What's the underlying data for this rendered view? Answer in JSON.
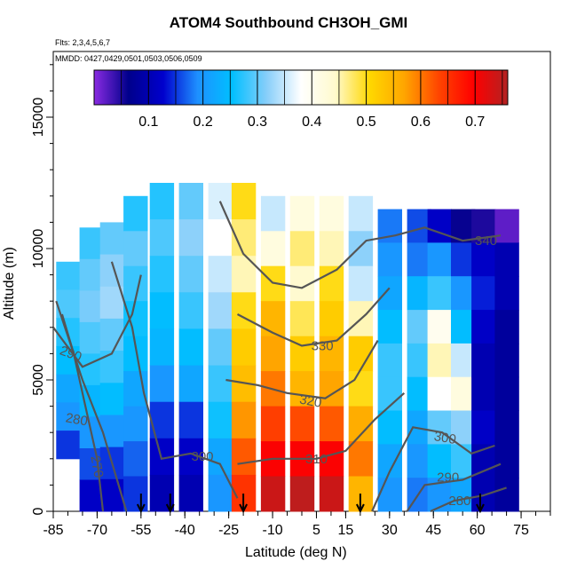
{
  "chart_data": {
    "type": "heatmap",
    "title": "ATOM4 Southbound CH3OH_GMI",
    "flights_label": "Flts: 2,3,4,5,6,7",
    "dates_label": "MMDD: 0427,0429,0501,0503,0506,0509",
    "xlabel": "Latitude (deg N)",
    "ylabel": "Altitude (m)",
    "xlim": [
      -85,
      85
    ],
    "ylim": [
      0,
      17500
    ],
    "x_ticks": [
      -85,
      -70,
      -55,
      -40,
      -25,
      -10,
      5,
      15,
      30,
      45,
      60,
      75
    ],
    "y_ticks": [
      0,
      5000,
      10000,
      15000
    ],
    "colorbar": {
      "range": [
        0,
        0.76
      ],
      "ticks": [
        0.1,
        0.2,
        0.3,
        0.4,
        0.5,
        0.6,
        0.7
      ],
      "colors": [
        "#8a2be2",
        "#00008b",
        "#0000cd",
        "#1e90ff",
        "#00bfff",
        "#87cefa",
        "#ffffff",
        "#fffacd",
        "#ffd700",
        "#ffa500",
        "#ff4500",
        "#ff0000",
        "#b22222"
      ]
    },
    "field_columns": [
      {
        "lat": -80,
        "top": 9500,
        "bottom": 2000,
        "values": [
          0.28,
          0.29,
          0.27,
          0.25,
          0.22,
          0.2,
          0.15
        ]
      },
      {
        "lat": -72,
        "top": 10800,
        "bottom": 0,
        "values": [
          0.28,
          0.3,
          0.31,
          0.29,
          0.27,
          0.24,
          0.2,
          0.16,
          0.12
        ]
      },
      {
        "lat": -65,
        "top": 11000,
        "bottom": 0,
        "values": [
          0.3,
          0.32,
          0.33,
          0.3,
          0.28,
          0.25,
          0.2,
          0.15,
          0.12
        ]
      },
      {
        "lat": -57,
        "top": 12000,
        "bottom": 0,
        "values": [
          0.27,
          0.3,
          0.28,
          0.26,
          0.25,
          0.22,
          0.2,
          0.17,
          0.15
        ]
      },
      {
        "lat": -48,
        "top": 12500,
        "bottom": 0,
        "values": [
          0.27,
          0.29,
          0.27,
          0.25,
          0.24,
          0.2,
          0.15,
          0.12,
          0.1
        ]
      },
      {
        "lat": -38,
        "top": 12500,
        "bottom": 0,
        "values": [
          0.3,
          0.32,
          0.3,
          0.28,
          0.25,
          0.22,
          0.15,
          0.12,
          0.1
        ]
      },
      {
        "lat": -28,
        "top": 12500,
        "bottom": 0,
        "values": [
          0.36,
          0.38,
          0.35,
          0.33,
          0.3,
          0.28,
          0.26,
          0.22,
          0.2
        ]
      },
      {
        "lat": -20,
        "top": 12500,
        "bottom": 0,
        "values": [
          0.5,
          0.47,
          0.45,
          0.5,
          0.52,
          0.54,
          0.58,
          0.62,
          0.65
        ]
      },
      {
        "lat": -10,
        "top": 12000,
        "bottom": 0,
        "values": [
          0.35,
          0.42,
          0.5,
          0.55,
          0.57,
          0.6,
          0.64,
          0.7,
          0.74
        ]
      },
      {
        "lat": 0,
        "top": 12000,
        "bottom": 0,
        "values": [
          0.42,
          0.47,
          0.44,
          0.48,
          0.52,
          0.55,
          0.63,
          0.7,
          0.75
        ]
      },
      {
        "lat": 10,
        "top": 12000,
        "bottom": 0,
        "values": [
          0.42,
          0.45,
          0.5,
          0.52,
          0.55,
          0.57,
          0.62,
          0.7,
          0.74
        ]
      },
      {
        "lat": 20,
        "top": 12000,
        "bottom": 0,
        "values": [
          0.35,
          0.32,
          0.35,
          0.45,
          0.52,
          0.5,
          0.56,
          0.6,
          0.55
        ]
      },
      {
        "lat": 30,
        "top": 11500,
        "bottom": 0,
        "values": [
          0.18,
          0.2,
          0.22,
          0.25,
          0.28,
          0.28,
          0.25,
          0.22,
          0.2
        ]
      },
      {
        "lat": 40,
        "top": 11500,
        "bottom": 0,
        "values": [
          0.16,
          0.18,
          0.24,
          0.3,
          0.28,
          0.25,
          0.22,
          0.2,
          0.18
        ]
      },
      {
        "lat": 47,
        "top": 11500,
        "bottom": 0,
        "values": [
          0.12,
          0.2,
          0.28,
          0.4,
          0.45,
          0.38,
          0.3,
          0.25,
          0.2
        ]
      },
      {
        "lat": 55,
        "top": 11500,
        "bottom": 0,
        "values": [
          0.06,
          0.15,
          0.2,
          0.25,
          0.35,
          0.42,
          0.32,
          0.28,
          0.22
        ]
      },
      {
        "lat": 62,
        "top": 11500,
        "bottom": 0,
        "values": [
          0.05,
          0.12,
          0.14,
          0.12,
          0.1,
          0.1,
          0.12,
          0.1,
          0.1
        ]
      },
      {
        "lat": 70,
        "top": 11500,
        "bottom": 0,
        "values": [
          0.02,
          0.1,
          0.1,
          0.08,
          0.08,
          0.08,
          0.08,
          0.08,
          0.08
        ]
      }
    ],
    "contours": [
      {
        "label": "270",
        "label_at": [
          -70,
          1700
        ],
        "label_angle": 80,
        "points": [
          [
            -82,
            7500
          ],
          [
            -78,
            6000
          ],
          [
            -74,
            4000
          ],
          [
            -70,
            2000
          ],
          [
            -68,
            0
          ]
        ]
      },
      {
        "label": "280",
        "label_at": [
          -77,
          3500
        ],
        "label_angle": 10,
        "points": [
          [
            -84,
            8000
          ],
          [
            -75,
            5000
          ],
          [
            -68,
            3000
          ],
          [
            -64,
            1500
          ],
          [
            -60,
            0
          ]
        ]
      },
      {
        "label": "290",
        "label_at": [
          -79,
          6000
        ],
        "label_angle": 20,
        "points": [
          [
            -85,
            7000
          ],
          [
            -75,
            5500
          ],
          [
            -65,
            6000
          ],
          [
            -58,
            7500
          ],
          [
            -55,
            9000
          ]
        ]
      },
      {
        "label": "300",
        "label_at": [
          -34,
          2100
        ],
        "label_angle": 0,
        "points": [
          [
            -65,
            9500
          ],
          [
            -58,
            7000
          ],
          [
            -54,
            4500
          ],
          [
            -48,
            2000
          ],
          [
            -38,
            2200
          ],
          [
            -28,
            1800
          ],
          [
            -22,
            500
          ]
        ]
      },
      {
        "label": "300",
        "label_at": [
          49,
          2800
        ],
        "label_angle": 10,
        "points": [
          [
            24,
            0
          ],
          [
            30,
            1500
          ],
          [
            38,
            3200
          ],
          [
            48,
            3000
          ],
          [
            58,
            2200
          ],
          [
            66,
            2500
          ]
        ]
      },
      {
        "label": "310",
        "label_at": [
          5,
          2000
        ],
        "label_angle": 0,
        "points": [
          [
            -22,
            1800
          ],
          [
            -10,
            2000
          ],
          [
            5,
            2000
          ],
          [
            15,
            2300
          ],
          [
            25,
            3500
          ],
          [
            35,
            4500
          ]
        ]
      },
      {
        "label": "320",
        "label_at": [
          3,
          4200
        ],
        "label_angle": 10,
        "points": [
          [
            -26,
            5000
          ],
          [
            -15,
            4800
          ],
          [
            -5,
            4500
          ],
          [
            8,
            4300
          ],
          [
            18,
            5000
          ],
          [
            26,
            6500
          ]
        ]
      },
      {
        "label": "330",
        "label_at": [
          7,
          6300
        ],
        "label_angle": 0,
        "points": [
          [
            -22,
            7500
          ],
          [
            -10,
            6800
          ],
          [
            0,
            6300
          ],
          [
            12,
            6500
          ],
          [
            22,
            7500
          ],
          [
            30,
            8500
          ]
        ]
      },
      {
        "label": "340",
        "label_at": [
          63,
          10300
        ],
        "label_angle": 0,
        "points": [
          [
            -28,
            11800
          ],
          [
            -20,
            9800
          ],
          [
            -10,
            8700
          ],
          [
            0,
            8500
          ],
          [
            12,
            9200
          ],
          [
            22,
            10300
          ],
          [
            32,
            10500
          ],
          [
            42,
            10800
          ],
          [
            55,
            10300
          ],
          [
            68,
            10500
          ]
        ]
      },
      {
        "label": "290",
        "label_at": [
          50,
          1300
        ],
        "label_angle": 0,
        "points": [
          [
            36,
            0
          ],
          [
            42,
            1000
          ],
          [
            55,
            1200
          ],
          [
            68,
            1800
          ]
        ]
      },
      {
        "label": "280",
        "label_at": [
          54,
          400
        ],
        "label_angle": 0,
        "points": [
          [
            44,
            0
          ],
          [
            52,
            400
          ],
          [
            62,
            600
          ],
          [
            70,
            900
          ]
        ]
      }
    ],
    "flight_arrows_lat": [
      -55,
      -45,
      -20,
      20,
      61
    ]
  }
}
